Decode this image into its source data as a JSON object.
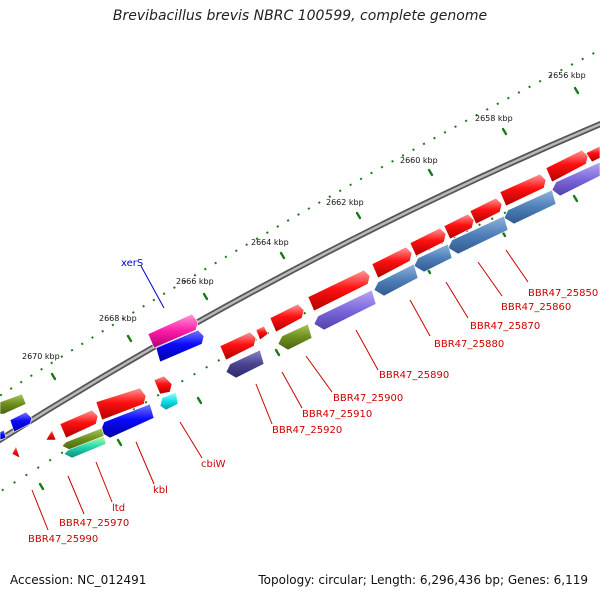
{
  "header": {
    "title": "Brevibacillus brevis NBRC 100599, complete genome"
  },
  "footer": {
    "accession": "Accession: NC_012491",
    "summary": "Topology: circular; Length: 6,296,436 bp; Genes: 6,119"
  },
  "colors": {
    "backbone": "#888888",
    "tick": "#1a7a1a",
    "label_gene": "#cc0000",
    "label_tick": "#111111",
    "label_xerS": "#0000cc"
  },
  "kbp_ticks": [
    {
      "label": "2656 kbp"
    },
    {
      "label": "2658 kbp"
    },
    {
      "label": "2660 kbp"
    },
    {
      "label": "2662 kbp"
    },
    {
      "label": "2664 kbp"
    },
    {
      "label": "2666 kbp"
    },
    {
      "label": "2668 kbp"
    },
    {
      "label": "2670 kbp"
    }
  ],
  "gene_labels": [
    {
      "text": "BBR47_25850"
    },
    {
      "text": "BBR47_25860"
    },
    {
      "text": "BBR47_25870"
    },
    {
      "text": "BBR47_25880"
    },
    {
      "text": "BBR47_25890"
    },
    {
      "text": "BBR47_25900"
    },
    {
      "text": "BBR47_25910"
    },
    {
      "text": "BBR47_25920"
    },
    {
      "text": "cbiW"
    },
    {
      "text": "kbl"
    },
    {
      "text": "ltd"
    },
    {
      "text": "BBR47_25970"
    },
    {
      "text": "BBR47_25990"
    },
    {
      "text": "xerS"
    }
  ]
}
